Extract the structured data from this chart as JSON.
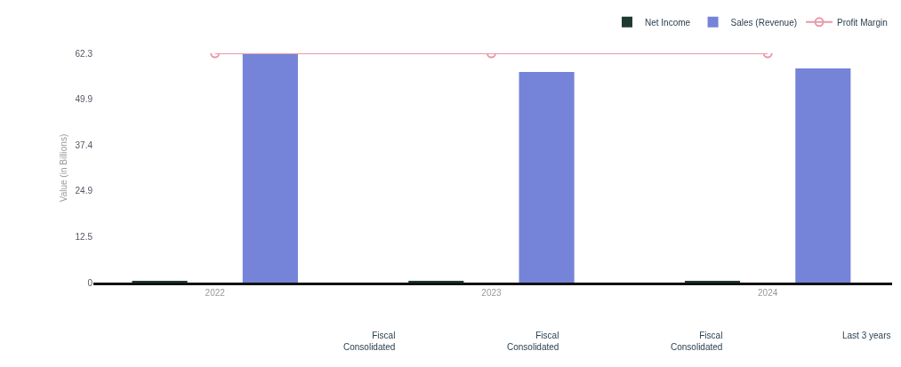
{
  "chart_data": {
    "type": "bar",
    "ylabel": "Value (in Billions)",
    "categories": [
      "2022",
      "2023",
      "2024"
    ],
    "series": [
      {
        "name": "Net Income",
        "color": "#1f3b2f",
        "values": [
          0.5,
          0.4,
          0.4
        ]
      },
      {
        "name": "Sales (Revenue)",
        "color": "#7583d8",
        "values": [
          62.2,
          57.2,
          58.2
        ]
      },
      {
        "name": "Profit Margin",
        "type": "line",
        "color": "#e89aaa",
        "marker": "circle",
        "values": [
          62.3,
          62.3,
          62.3
        ]
      }
    ],
    "ylim": [
      0,
      62.3
    ],
    "yticks": [
      0,
      12.5,
      24.9,
      37.4,
      49.9,
      62.3
    ],
    "grid": false,
    "legend": "top right",
    "annotations": [
      "Fiscal\nConsolidated",
      "Fiscal\nConsolidated",
      "Fiscal\nConsolidated",
      "Last 3 years"
    ]
  }
}
